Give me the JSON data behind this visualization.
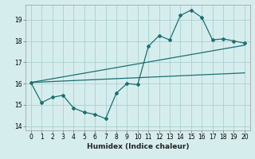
{
  "title": "",
  "xlabel": "Humidex (Indice chaleur)",
  "bg_color": "#d6edee",
  "grid_color": "#aad0d0",
  "line_color": "#1a7070",
  "xlim": [
    -0.5,
    20.5
  ],
  "ylim": [
    13.8,
    19.7
  ],
  "xticks": [
    0,
    1,
    2,
    3,
    4,
    5,
    6,
    7,
    8,
    9,
    10,
    11,
    12,
    13,
    14,
    15,
    16,
    17,
    18,
    19,
    20
  ],
  "yticks": [
    14,
    15,
    16,
    17,
    18,
    19
  ],
  "series1_x": [
    0,
    1,
    2,
    3,
    4,
    5,
    6,
    7,
    8,
    9,
    10,
    11,
    12,
    13,
    14,
    15,
    16,
    17,
    18,
    19,
    20
  ],
  "series1_y": [
    16.05,
    15.1,
    15.35,
    15.45,
    14.85,
    14.65,
    14.55,
    14.35,
    15.55,
    16.0,
    15.95,
    17.75,
    18.25,
    18.05,
    19.2,
    19.45,
    19.1,
    18.05,
    18.1,
    18.0,
    17.9
  ],
  "series2_x": [
    0,
    20
  ],
  "series2_y": [
    16.05,
    16.5
  ],
  "series3_x": [
    0,
    20
  ],
  "series3_y": [
    16.05,
    17.8
  ],
  "marker_size": 2.0,
  "line_width": 0.9,
  "tick_labelsize": 5.5,
  "xlabel_fontsize": 6.5,
  "xlabel_fontweight": "bold"
}
